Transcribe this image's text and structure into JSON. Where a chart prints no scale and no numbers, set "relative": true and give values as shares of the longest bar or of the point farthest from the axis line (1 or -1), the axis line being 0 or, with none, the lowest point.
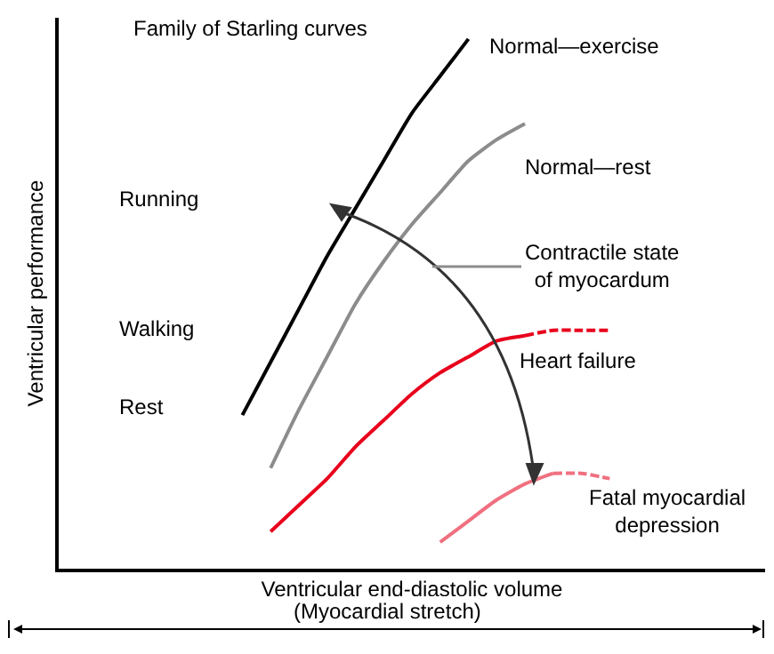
{
  "chart_data": {
    "type": "line",
    "relative": true,
    "title": "Family of Starling curves",
    "xlabel": "Ventricular end-diastolic volume",
    "ylabel": "Ventricular performance",
    "categories": [
      null,
      null,
      null,
      null,
      null,
      null,
      null,
      null,
      null,
      null,
      null,
      null,
      null,
      null,
      null,
      null,
      null,
      null,
      null,
      null,
      null,
      null,
      null,
      null,
      null
    ],
    "series": [
      {
        "name": "Normal—exercise",
        "color": "#000000",
        "line_style": "solid",
        "values": [
          null,
          null,
          null,
          null,
          null,
          null,
          0.29,
          0.39,
          0.49,
          0.59,
          0.68,
          0.77,
          0.86,
          0.93,
          1.0,
          null,
          null,
          null,
          null,
          null,
          null,
          null,
          null,
          null,
          null
        ]
      },
      {
        "name": "Normal—rest",
        "color": "#8c8c8c",
        "line_style": "solid",
        "values": [
          null,
          null,
          null,
          null,
          null,
          null,
          null,
          0.19,
          0.3,
          0.4,
          0.5,
          0.58,
          0.65,
          0.71,
          0.77,
          0.81,
          0.84,
          null,
          null,
          null,
          null,
          null,
          null,
          null,
          null
        ]
      },
      {
        "name": "Heart failure",
        "color": "#e8001c",
        "line_style": "solid",
        "values": [
          null,
          null,
          null,
          null,
          null,
          null,
          null,
          0.07,
          0.12,
          0.17,
          0.23,
          0.28,
          0.33,
          0.37,
          0.4,
          0.43,
          0.44,
          null,
          null,
          null,
          null,
          null,
          null,
          null,
          null
        ]
      },
      {
        "color": "#e8001c",
        "line_style": "dashed",
        "values": [
          null,
          null,
          null,
          null,
          null,
          null,
          null,
          null,
          null,
          null,
          null,
          null,
          null,
          null,
          null,
          null,
          0.44,
          0.45,
          0.45,
          0.45,
          null,
          null,
          null,
          null,
          null
        ]
      },
      {
        "name": "Fatal myocardial\ndepression",
        "color": "#f07080",
        "line_style": "solid",
        "values": [
          null,
          null,
          null,
          null,
          null,
          null,
          null,
          null,
          null,
          null,
          null,
          null,
          null,
          0.05,
          0.09,
          0.13,
          0.16,
          0.18,
          null,
          null,
          null,
          null,
          null,
          null,
          null
        ]
      },
      {
        "color": "#f07080",
        "line_style": "dashed",
        "values": [
          null,
          null,
          null,
          null,
          null,
          null,
          null,
          null,
          null,
          null,
          null,
          null,
          null,
          null,
          null,
          null,
          null,
          0.18,
          0.18,
          0.17,
          null,
          null,
          null,
          null,
          null
        ]
      }
    ],
    "annotations": [
      "Running",
      "Walking",
      "Rest",
      "Contractile state\nof myocardum",
      "(Myocardial stretch)"
    ],
    "legend": false
  }
}
